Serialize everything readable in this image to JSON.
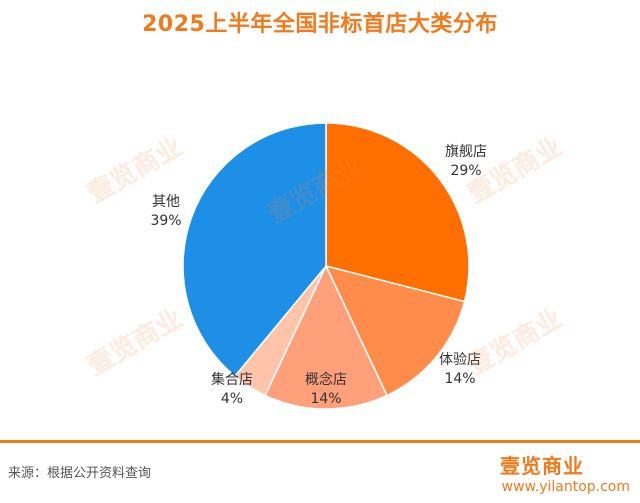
{
  "chart_data": {
    "type": "pie",
    "title": "2025上半年全国非标首店大类分布",
    "slices": [
      {
        "name": "旗舰店",
        "value": 29,
        "label": "29%",
        "color": "#ff6f00"
      },
      {
        "name": "体验店",
        "value": 14,
        "label": "14%",
        "color": "#ff8c4b"
      },
      {
        "name": "概念店",
        "value": 14,
        "label": "14%",
        "color": "#ffa07a"
      },
      {
        "name": "集合店",
        "value": 4,
        "label": "4%",
        "color": "#ffc4a9"
      },
      {
        "name": "其他",
        "value": 39,
        "label": "39%",
        "color": "#1e8fe6"
      }
    ],
    "start": "12 o'clock",
    "direction": "clockwise"
  },
  "footer": {
    "source": "来源：根据公开资料查询",
    "brand_name": "壹览商业",
    "brand_url": "www.yilantop.com"
  },
  "colors": {
    "accent": "#f07a1c"
  }
}
